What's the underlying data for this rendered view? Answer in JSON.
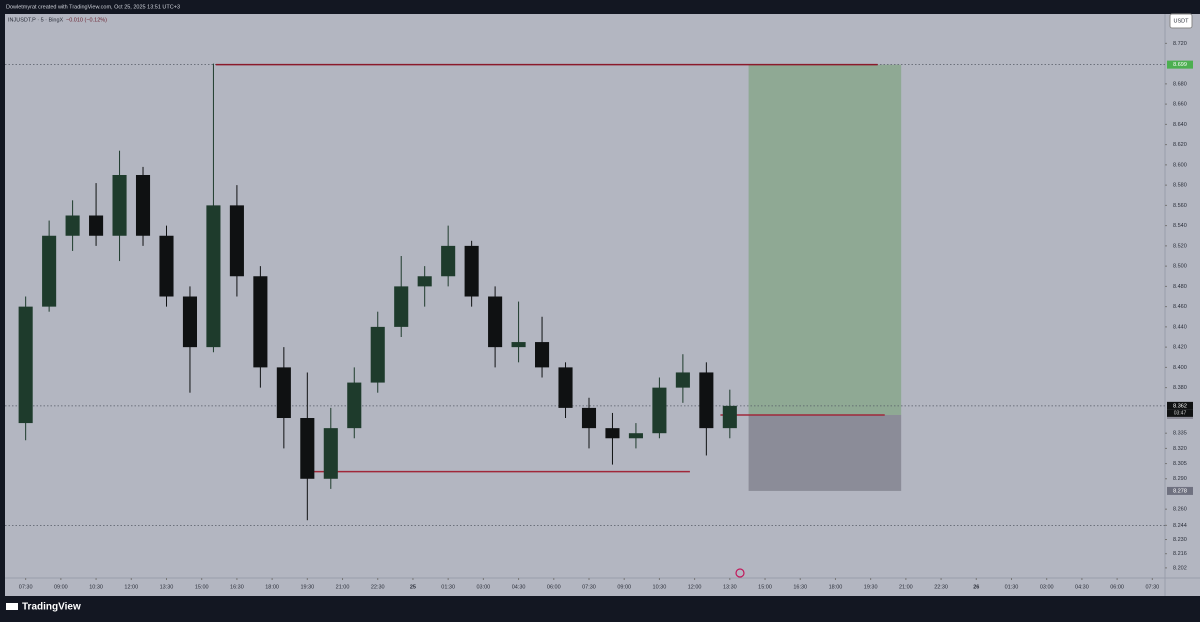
{
  "header": {
    "credit": "Dowletmyrat created with TradingView.com, Oct 25, 2025 13:51 UTC+3",
    "symbol": "INJUSDT.P · 5 · BingX",
    "change": "−0.010 (−0.12%)",
    "currency": "USDT",
    "brand": "TradingView"
  },
  "chart_data": {
    "type": "candlestick",
    "x": [
      7.5,
      8.5,
      9.5,
      10.5,
      11.5,
      12.5,
      13.5,
      14.5,
      15.5,
      16.5,
      17.5,
      18.5,
      19.5,
      20.5,
      21.5,
      22.5,
      23.5,
      24.5,
      25.5,
      26.5,
      27.5,
      28.5,
      29.5,
      30.5,
      31.5,
      32.5,
      33.5,
      34.5,
      35.5,
      36.5,
      37.5
    ],
    "open": [
      8.345,
      8.46,
      8.53,
      8.55,
      8.53,
      8.59,
      8.53,
      8.47,
      8.42,
      8.56,
      8.49,
      8.4,
      8.35,
      8.29,
      8.34,
      8.385,
      8.44,
      8.48,
      8.49,
      8.52,
      8.47,
      8.42,
      8.425,
      8.4,
      8.36,
      8.34,
      8.33,
      8.335,
      8.38,
      8.395,
      8.34
    ],
    "high": [
      8.47,
      8.545,
      8.565,
      8.582,
      8.614,
      8.598,
      8.54,
      8.48,
      8.7,
      8.58,
      8.5,
      8.42,
      8.395,
      8.36,
      8.4,
      8.455,
      8.51,
      8.5,
      8.54,
      8.525,
      8.48,
      8.465,
      8.45,
      8.405,
      8.37,
      8.355,
      8.345,
      8.39,
      8.413,
      8.405,
      8.378
    ],
    "low": [
      8.328,
      8.455,
      8.515,
      8.52,
      8.505,
      8.52,
      8.46,
      8.375,
      8.415,
      8.47,
      8.38,
      8.32,
      8.249,
      8.28,
      8.33,
      8.375,
      8.43,
      8.46,
      8.48,
      8.46,
      8.4,
      8.405,
      8.39,
      8.35,
      8.32,
      8.304,
      8.32,
      8.33,
      8.365,
      8.313,
      8.33
    ],
    "close": [
      8.46,
      8.53,
      8.55,
      8.53,
      8.59,
      8.53,
      8.47,
      8.42,
      8.56,
      8.49,
      8.4,
      8.35,
      8.29,
      8.34,
      8.385,
      8.44,
      8.48,
      8.49,
      8.52,
      8.47,
      8.42,
      8.425,
      8.4,
      8.36,
      8.34,
      8.33,
      8.335,
      8.38,
      8.395,
      8.34,
      8.362
    ],
    "up_color": "#1e3b2c",
    "down_color": "#0f1112",
    "xlim": [
      6.62,
      56.04
    ],
    "xticks": [
      {
        "value": 7.5,
        "label": "07:30"
      },
      {
        "value": 9,
        "label": "09:00"
      },
      {
        "value": 10.5,
        "label": "10:30"
      },
      {
        "value": 12,
        "label": "12:00"
      },
      {
        "value": 13.5,
        "label": "13:30"
      },
      {
        "value": 15,
        "label": "15:00"
      },
      {
        "value": 16.5,
        "label": "16:30"
      },
      {
        "value": 18,
        "label": "18:00"
      },
      {
        "value": 19.5,
        "label": "19:30"
      },
      {
        "value": 21,
        "label": "21:00"
      },
      {
        "value": 22.5,
        "label": "22:30"
      },
      {
        "value": 24,
        "label": "25"
      },
      {
        "value": 25.5,
        "label": "01:30"
      },
      {
        "value": 27,
        "label": "03:00"
      },
      {
        "value": 28.5,
        "label": "04:30"
      },
      {
        "value": 30,
        "label": "06:00"
      },
      {
        "value": 31.5,
        "label": "07:30"
      },
      {
        "value": 33,
        "label": "09:00"
      },
      {
        "value": 34.5,
        "label": "10:30"
      },
      {
        "value": 36,
        "label": "12:00"
      },
      {
        "value": 37.5,
        "label": "13:30"
      },
      {
        "value": 39,
        "label": "15:00"
      },
      {
        "value": 40.5,
        "label": "16:30"
      },
      {
        "value": 42,
        "label": "18:00"
      },
      {
        "value": 43.5,
        "label": "19:30"
      },
      {
        "value": 45,
        "label": "21:00"
      },
      {
        "value": 46.5,
        "label": "22:30"
      },
      {
        "value": 48,
        "label": "26"
      },
      {
        "value": 49.5,
        "label": "01:30"
      },
      {
        "value": 51,
        "label": "03:00"
      },
      {
        "value": 52.5,
        "label": "04:30"
      },
      {
        "value": 54,
        "label": "06:00"
      },
      {
        "value": 55.5,
        "label": "07:30"
      }
    ],
    "ylim": [
      8.192,
      8.749
    ],
    "yticks": [
      {
        "value": 8.72,
        "label": "8.720"
      },
      {
        "value": 8.68,
        "label": "8.680"
      },
      {
        "value": 8.66,
        "label": "8.660"
      },
      {
        "value": 8.64,
        "label": "8.640"
      },
      {
        "value": 8.62,
        "label": "8.620"
      },
      {
        "value": 8.6,
        "label": "8.600"
      },
      {
        "value": 8.58,
        "label": "8.580"
      },
      {
        "value": 8.56,
        "label": "8.560"
      },
      {
        "value": 8.54,
        "label": "8.540"
      },
      {
        "value": 8.52,
        "label": "8.520"
      },
      {
        "value": 8.5,
        "label": "8.500"
      },
      {
        "value": 8.48,
        "label": "8.480"
      },
      {
        "value": 8.46,
        "label": "8.460"
      },
      {
        "value": 8.44,
        "label": "8.440"
      },
      {
        "value": 8.42,
        "label": "8.420"
      },
      {
        "value": 8.4,
        "label": "8.400"
      },
      {
        "value": 8.38,
        "label": "8.380"
      },
      8.335,
      {
        "value": 8.32,
        "label": "8.320"
      },
      8.305,
      {
        "value": 8.29,
        "label": "8.290"
      },
      {
        "value": 8.26,
        "label": "8.260"
      },
      8.244,
      {
        "value": 8.23,
        "label": "8.230"
      },
      8.216,
      8.202
    ],
    "grid": false,
    "levels": [
      {
        "price": 8.699,
        "from": 15.6,
        "to": 43.8,
        "color": "#8b1a2b"
      },
      {
        "price": 8.297,
        "from": 19.5,
        "to": 35.8,
        "color": "#a0283a"
      },
      {
        "price": 8.353,
        "from": 37.1,
        "to": 44.1,
        "color": "#a0283a"
      }
    ],
    "dotted_levels": [
      8.699,
      8.244
    ],
    "last_price": {
      "value": 8.362,
      "countdown": "03:47"
    },
    "position": {
      "from": 38.3,
      "to": 44.8,
      "target": 8.699,
      "entry": 8.353,
      "stop": 8.278,
      "profit_color": "#8fa994",
      "loss_color": "#8b8c98"
    }
  }
}
